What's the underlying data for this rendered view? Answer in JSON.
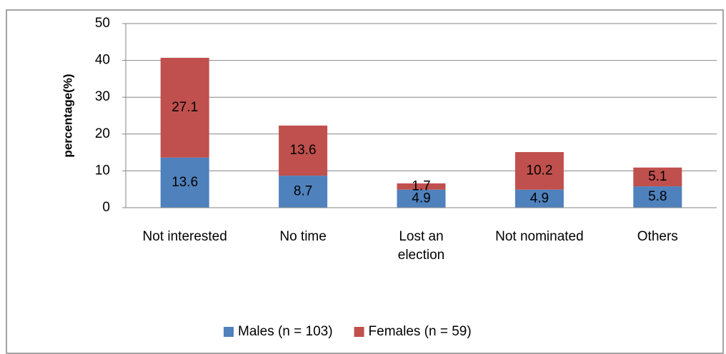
{
  "chart_data": {
    "type": "bar",
    "stacked": true,
    "y_label": "percentage(%)",
    "categories": [
      "Not interested",
      "No time",
      "Lost an election",
      "Not nominated",
      "Others"
    ],
    "series": [
      {
        "name": "Males (n = 103)",
        "color": "#4f81bd",
        "values": [
          13.6,
          8.7,
          4.9,
          4.9,
          5.8
        ]
      },
      {
        "name": "Females (n = 59)",
        "color": "#c0504d",
        "values": [
          27.1,
          13.6,
          1.7,
          10.2,
          5.1
        ]
      }
    ],
    "ylim": [
      0,
      50
    ],
    "yticks": [
      0,
      10,
      20,
      30,
      40,
      50
    ],
    "grid": true,
    "legend": "bottom"
  }
}
